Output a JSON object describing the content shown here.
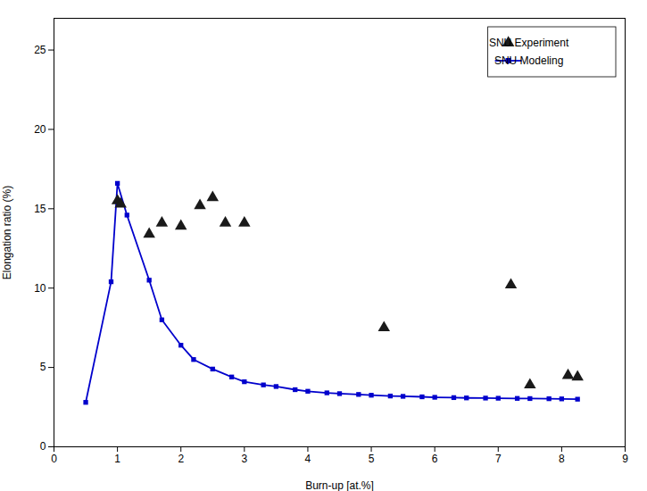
{
  "chart_data": {
    "type": "line",
    "xlabel": "Burn-up [at.%]",
    "ylabel": "Elongation ratio (%)",
    "xlim": [
      0,
      9
    ],
    "ylim": [
      0,
      27
    ],
    "xticks": [
      0,
      1,
      2,
      3,
      4,
      5,
      6,
      7,
      8,
      9
    ],
    "yticks": [
      0,
      5,
      10,
      15,
      20,
      25
    ],
    "grid": false,
    "legend": "upper right",
    "series": [
      {
        "name": "SNU Experiment",
        "type": "scatter",
        "color": "#1a1a1a",
        "marker": "triangle",
        "x": [
          1.0,
          1.05,
          1.5,
          1.7,
          2.0,
          2.3,
          2.5,
          2.7,
          3.0,
          5.2,
          7.2,
          7.5,
          8.1,
          8.25
        ],
        "values": [
          15.5,
          15.3,
          13.4,
          14.1,
          13.9,
          15.2,
          15.7,
          14.1,
          14.1,
          7.5,
          10.2,
          3.9,
          4.5,
          4.4
        ]
      },
      {
        "name": "SNU Modeling",
        "type": "line",
        "color": "#0000cc",
        "marker": "square",
        "x": [
          0.5,
          0.9,
          1.0,
          1.15,
          1.5,
          1.7,
          2.0,
          2.2,
          2.5,
          2.8,
          3.0,
          3.3,
          3.5,
          3.8,
          4.0,
          4.3,
          4.5,
          4.8,
          5.0,
          5.3,
          5.5,
          5.8,
          6.0,
          6.3,
          6.5,
          6.8,
          7.0,
          7.3,
          7.5,
          7.8,
          8.0,
          8.25
        ],
        "values": [
          2.8,
          10.4,
          16.6,
          14.6,
          10.5,
          8.0,
          6.4,
          5.5,
          4.9,
          4.4,
          4.1,
          3.9,
          3.8,
          3.6,
          3.5,
          3.4,
          3.35,
          3.3,
          3.25,
          3.2,
          3.18,
          3.15,
          3.12,
          3.1,
          3.08,
          3.07,
          3.06,
          3.05,
          3.04,
          3.03,
          3.02,
          3.0
        ]
      }
    ]
  }
}
